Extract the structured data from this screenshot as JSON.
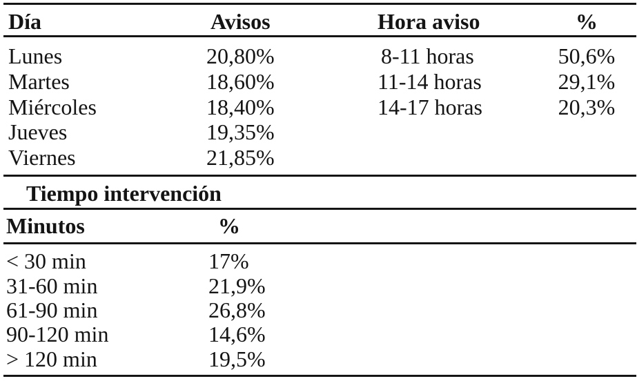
{
  "page": {
    "background_color": "#ffffff",
    "text_color": "#141414",
    "rule_color": "#141414"
  },
  "table_avisos": {
    "headers": {
      "dia": "Día",
      "avisos": "Avisos",
      "hora_aviso": "Hora aviso",
      "pct": "%"
    },
    "rows": [
      {
        "dia": "Lunes",
        "avisos": "20,80%",
        "hora": "8-11 horas",
        "pct": "50,6%"
      },
      {
        "dia": "Martes",
        "avisos": "18,60%",
        "hora": "11-14 horas",
        "pct": "29,1%"
      },
      {
        "dia": "Miércoles",
        "avisos": "18,40%",
        "hora": "14-17 horas",
        "pct": "20,3%"
      },
      {
        "dia": "Jueves",
        "avisos": "19,35%",
        "hora": "",
        "pct": ""
      },
      {
        "dia": "Viernes",
        "avisos": "21,85%",
        "hora": "",
        "pct": ""
      }
    ]
  },
  "section_tiempo": {
    "title": "Tiempo intervención"
  },
  "table_minutos": {
    "headers": {
      "minutos": "Minutos",
      "pct": "%"
    },
    "rows": [
      {
        "minutos": "< 30 min",
        "pct": "17%"
      },
      {
        "minutos": "31-60 min",
        "pct": "21,9%"
      },
      {
        "minutos": "61-90 min",
        "pct": "26,8%"
      },
      {
        "minutos": "90-120 min",
        "pct": "14,6%"
      },
      {
        "minutos": "> 120 min",
        "pct": "19,5%"
      }
    ]
  }
}
